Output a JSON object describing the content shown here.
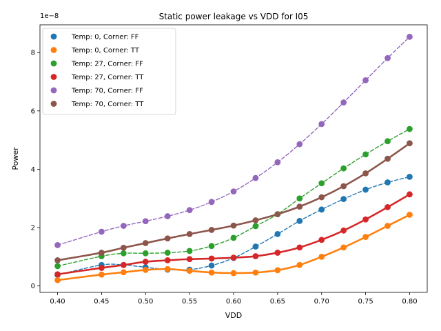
{
  "chart_data": {
    "type": "scatter",
    "title": "Static power leakage vs VDD for I05",
    "xlabel": "VDD",
    "ylabel": "Power",
    "y_offset_label": "1e−8",
    "y_scale": 1e-08,
    "xlim": [
      0.38,
      0.82
    ],
    "ylim": [
      -2.2e-09,
      8.95e-08
    ],
    "x_ticks": [
      0.4,
      0.45,
      0.5,
      0.55,
      0.6,
      0.65,
      0.7,
      0.75,
      0.8
    ],
    "x_tick_labels": [
      "0.40",
      "0.45",
      "0.50",
      "0.55",
      "0.60",
      "0.65",
      "0.70",
      "0.75",
      "0.80"
    ],
    "y_ticks": [
      0,
      2e-08,
      4e-08,
      6e-08,
      8e-08
    ],
    "y_tick_labels": [
      "0",
      "2",
      "4",
      "6",
      "8"
    ],
    "x": [
      0.4,
      0.45,
      0.475,
      0.5,
      0.525,
      0.55,
      0.575,
      0.6,
      0.625,
      0.65,
      0.675,
      0.7,
      0.725,
      0.75,
      0.775,
      0.8
    ],
    "legend_position": "upper-left",
    "grid": false,
    "series": [
      {
        "name": "Temp: 0, Corner: FF",
        "color": "#1f77b4",
        "fit_style": "dashed",
        "values": [
          3.8e-09,
          7.2e-09,
          7.2e-09,
          6.4e-09,
          5.6e-09,
          5.6e-09,
          7e-09,
          9.6e-09,
          1.35e-08,
          1.78e-08,
          2.23e-08,
          2.62e-08,
          2.98e-08,
          3.3e-08,
          3.55e-08,
          3.74e-08
        ]
      },
      {
        "name": "Temp: 0, Corner: TT",
        "color": "#ff7f0e",
        "fit_style": "solid",
        "values": [
          2e-09,
          3.9e-09,
          4.7e-09,
          5.5e-09,
          5.8e-09,
          5.2e-09,
          4.6e-09,
          4.4e-09,
          4.6e-09,
          5.4e-09,
          7.2e-09,
          1e-08,
          1.32e-08,
          1.68e-08,
          2.06e-08,
          2.44e-08
        ]
      },
      {
        "name": "Temp: 27, Corner: FF",
        "color": "#2ca02c",
        "fit_style": "dashed",
        "values": [
          6.8e-09,
          1.02e-08,
          1.12e-08,
          1.12e-08,
          1.14e-08,
          1.2e-08,
          1.37e-08,
          1.65e-08,
          2.05e-08,
          2.46e-08,
          3e-08,
          3.52e-08,
          4.03e-08,
          4.51e-08,
          4.96e-08,
          5.38e-08
        ]
      },
      {
        "name": "Temp: 27, Corner: TT",
        "color": "#d62728",
        "fit_style": "solid",
        "values": [
          4e-09,
          6.2e-09,
          7.2e-09,
          8.3e-09,
          8.8e-09,
          9.2e-09,
          9.4e-09,
          9.7e-09,
          1.02e-08,
          1.14e-08,
          1.32e-08,
          1.58e-08,
          1.9e-08,
          2.28e-08,
          2.7e-08,
          3.14e-08
        ]
      },
      {
        "name": "Temp: 70, Corner: FF",
        "color": "#9467bd",
        "fit_style": "dashed",
        "values": [
          1.4e-08,
          1.86e-08,
          2.06e-08,
          2.22e-08,
          2.39e-08,
          2.6e-08,
          2.88e-08,
          3.24e-08,
          3.7e-08,
          4.24e-08,
          4.86e-08,
          5.55e-08,
          6.29e-08,
          7.05e-08,
          7.81e-08,
          8.54e-08
        ]
      },
      {
        "name": "Temp: 70, Corner: TT",
        "color": "#8c564b",
        "fit_style": "solid",
        "values": [
          8.8e-09,
          1.14e-08,
          1.31e-08,
          1.47e-08,
          1.63e-08,
          1.78e-08,
          1.92e-08,
          2.07e-08,
          2.25e-08,
          2.46e-08,
          2.72e-08,
          3.04e-08,
          3.42e-08,
          3.86e-08,
          4.36e-08,
          4.89e-08
        ]
      }
    ]
  }
}
